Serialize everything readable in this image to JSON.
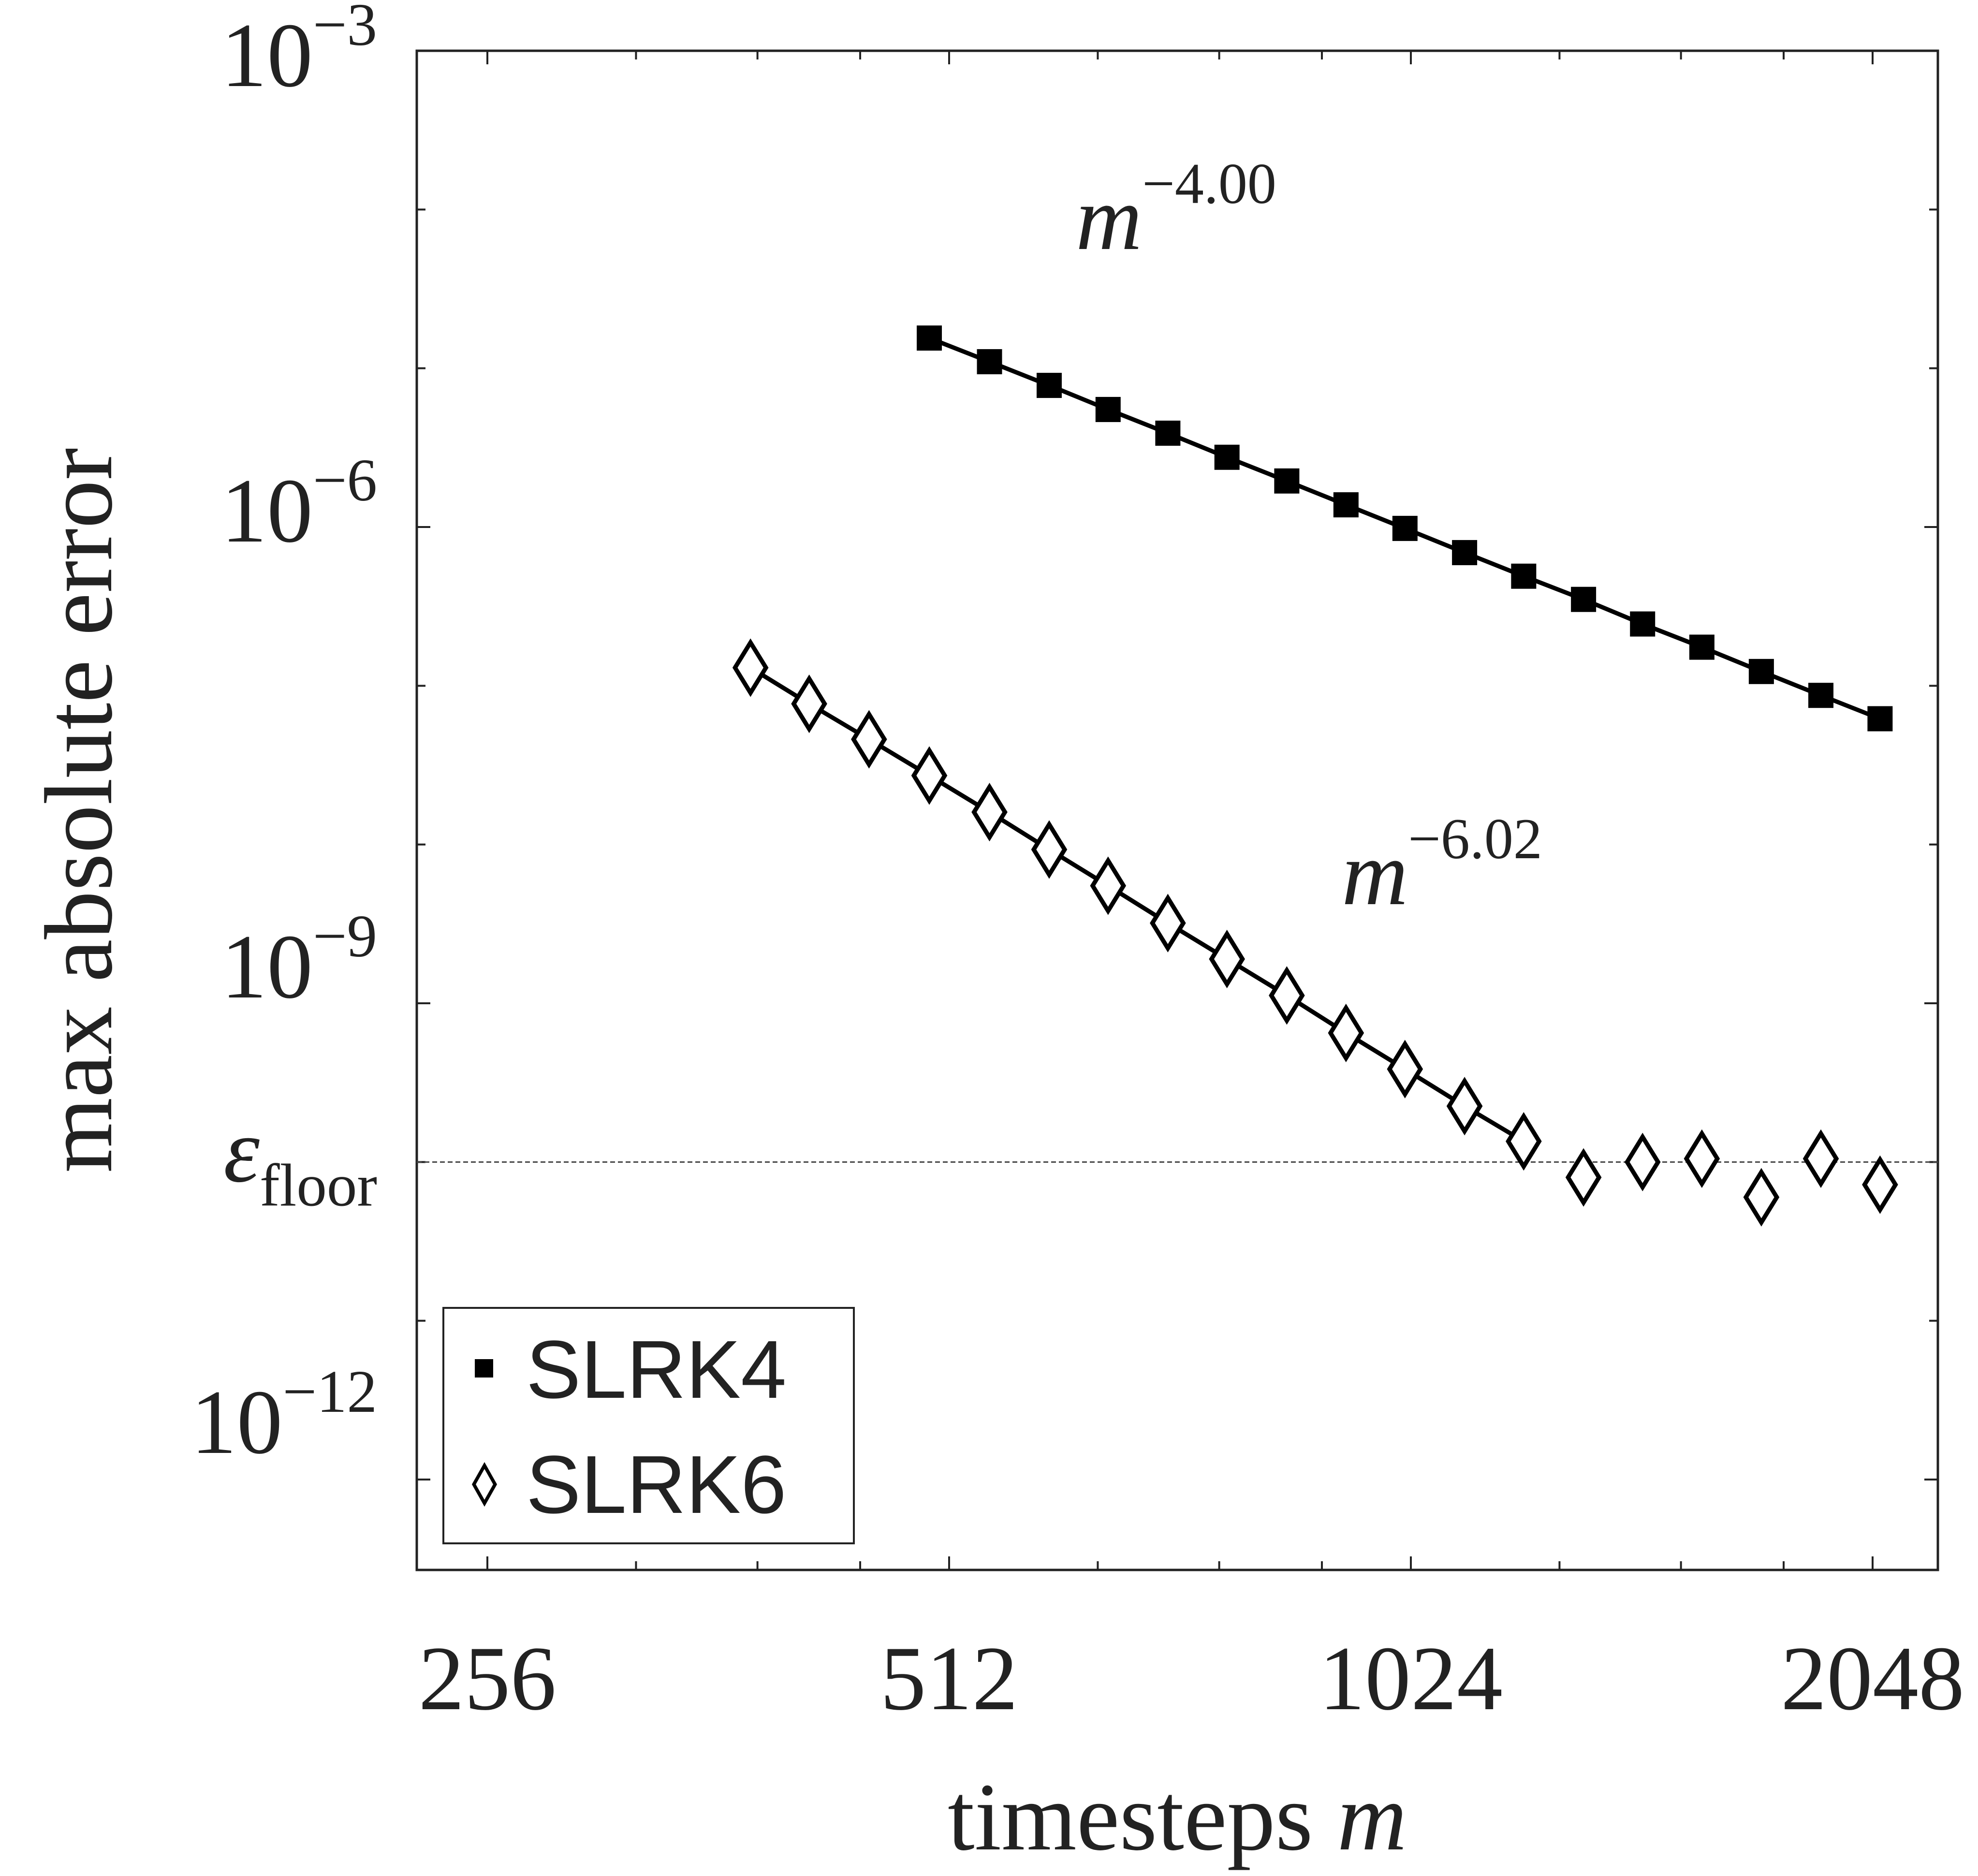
{
  "chart_data": {
    "type": "scatter",
    "xscale": "log2",
    "yscale": "log10",
    "xlim": [
      230,
      2200
    ],
    "ylim": [
      1e-13,
      0.001
    ],
    "xticks": [
      256,
      512,
      1024,
      2048
    ],
    "xtick_labels": [
      "256",
      "512",
      "1024",
      "2048"
    ],
    "yticks": [
      {
        "base": "10",
        "exp": "−3",
        "value": 0.001
      },
      {
        "base": "10",
        "exp": "−6",
        "value": 1e-06
      },
      {
        "base": "10",
        "exp": "−9",
        "value": 1e-09
      },
      {
        "base": "10",
        "exp": "−12",
        "value": 1e-12
      }
    ],
    "xlabel": "timesteps",
    "xlabel_var": "m",
    "ylabel": "max absolute error",
    "grid": false,
    "legend": "bottom-left",
    "floor": {
      "value": 1e-10,
      "label": "ε",
      "label_sub": "floor",
      "style": "dotted"
    },
    "series": [
      {
        "name": "SLRK4",
        "marker": "filled-square",
        "color": "#000000",
        "x": [
          497,
          544,
          595,
          650,
          711,
          777,
          850,
          929,
          1015,
          1110,
          1213,
          1327,
          1450,
          1585,
          1733,
          1895,
          2071
        ],
        "y": [
          1.55e-05,
          1.1e-05,
          7.8e-06,
          5.5e-06,
          3.9e-06,
          2.75e-06,
          1.95e-06,
          1.38e-06,
          9.8e-07,
          6.9e-07,
          4.9e-07,
          3.5e-07,
          2.45e-07,
          1.75e-07,
          1.23e-07,
          8.7e-08,
          6.2e-08
        ],
        "fit_line": true,
        "slope_label": {
          "base": "m",
          "exp": "−4.00"
        }
      },
      {
        "name": "SLRK6",
        "marker": "open-diamond",
        "color": "#000000",
        "x": [
          380,
          415,
          454,
          497,
          544,
          595,
          650,
          711,
          777,
          850,
          929,
          1015,
          1110,
          1213,
          1327,
          1450,
          1585,
          1733,
          1895,
          2071
        ],
        "y": [
          1.3e-07,
          7.7e-08,
          4.6e-08,
          2.72e-08,
          1.6e-08,
          9.3e-09,
          5.5e-09,
          3.2e-09,
          1.9e-09,
          1.12e-09,
          6.5e-10,
          3.85e-10,
          2.25e-10,
          1.35e-10,
          8e-11,
          1e-10,
          1.05e-10,
          6e-11,
          1.05e-10,
          7.2e-11
        ],
        "fit_line_count": 14,
        "slope_label": {
          "base": "m",
          "exp": "−6.02"
        }
      }
    ]
  }
}
